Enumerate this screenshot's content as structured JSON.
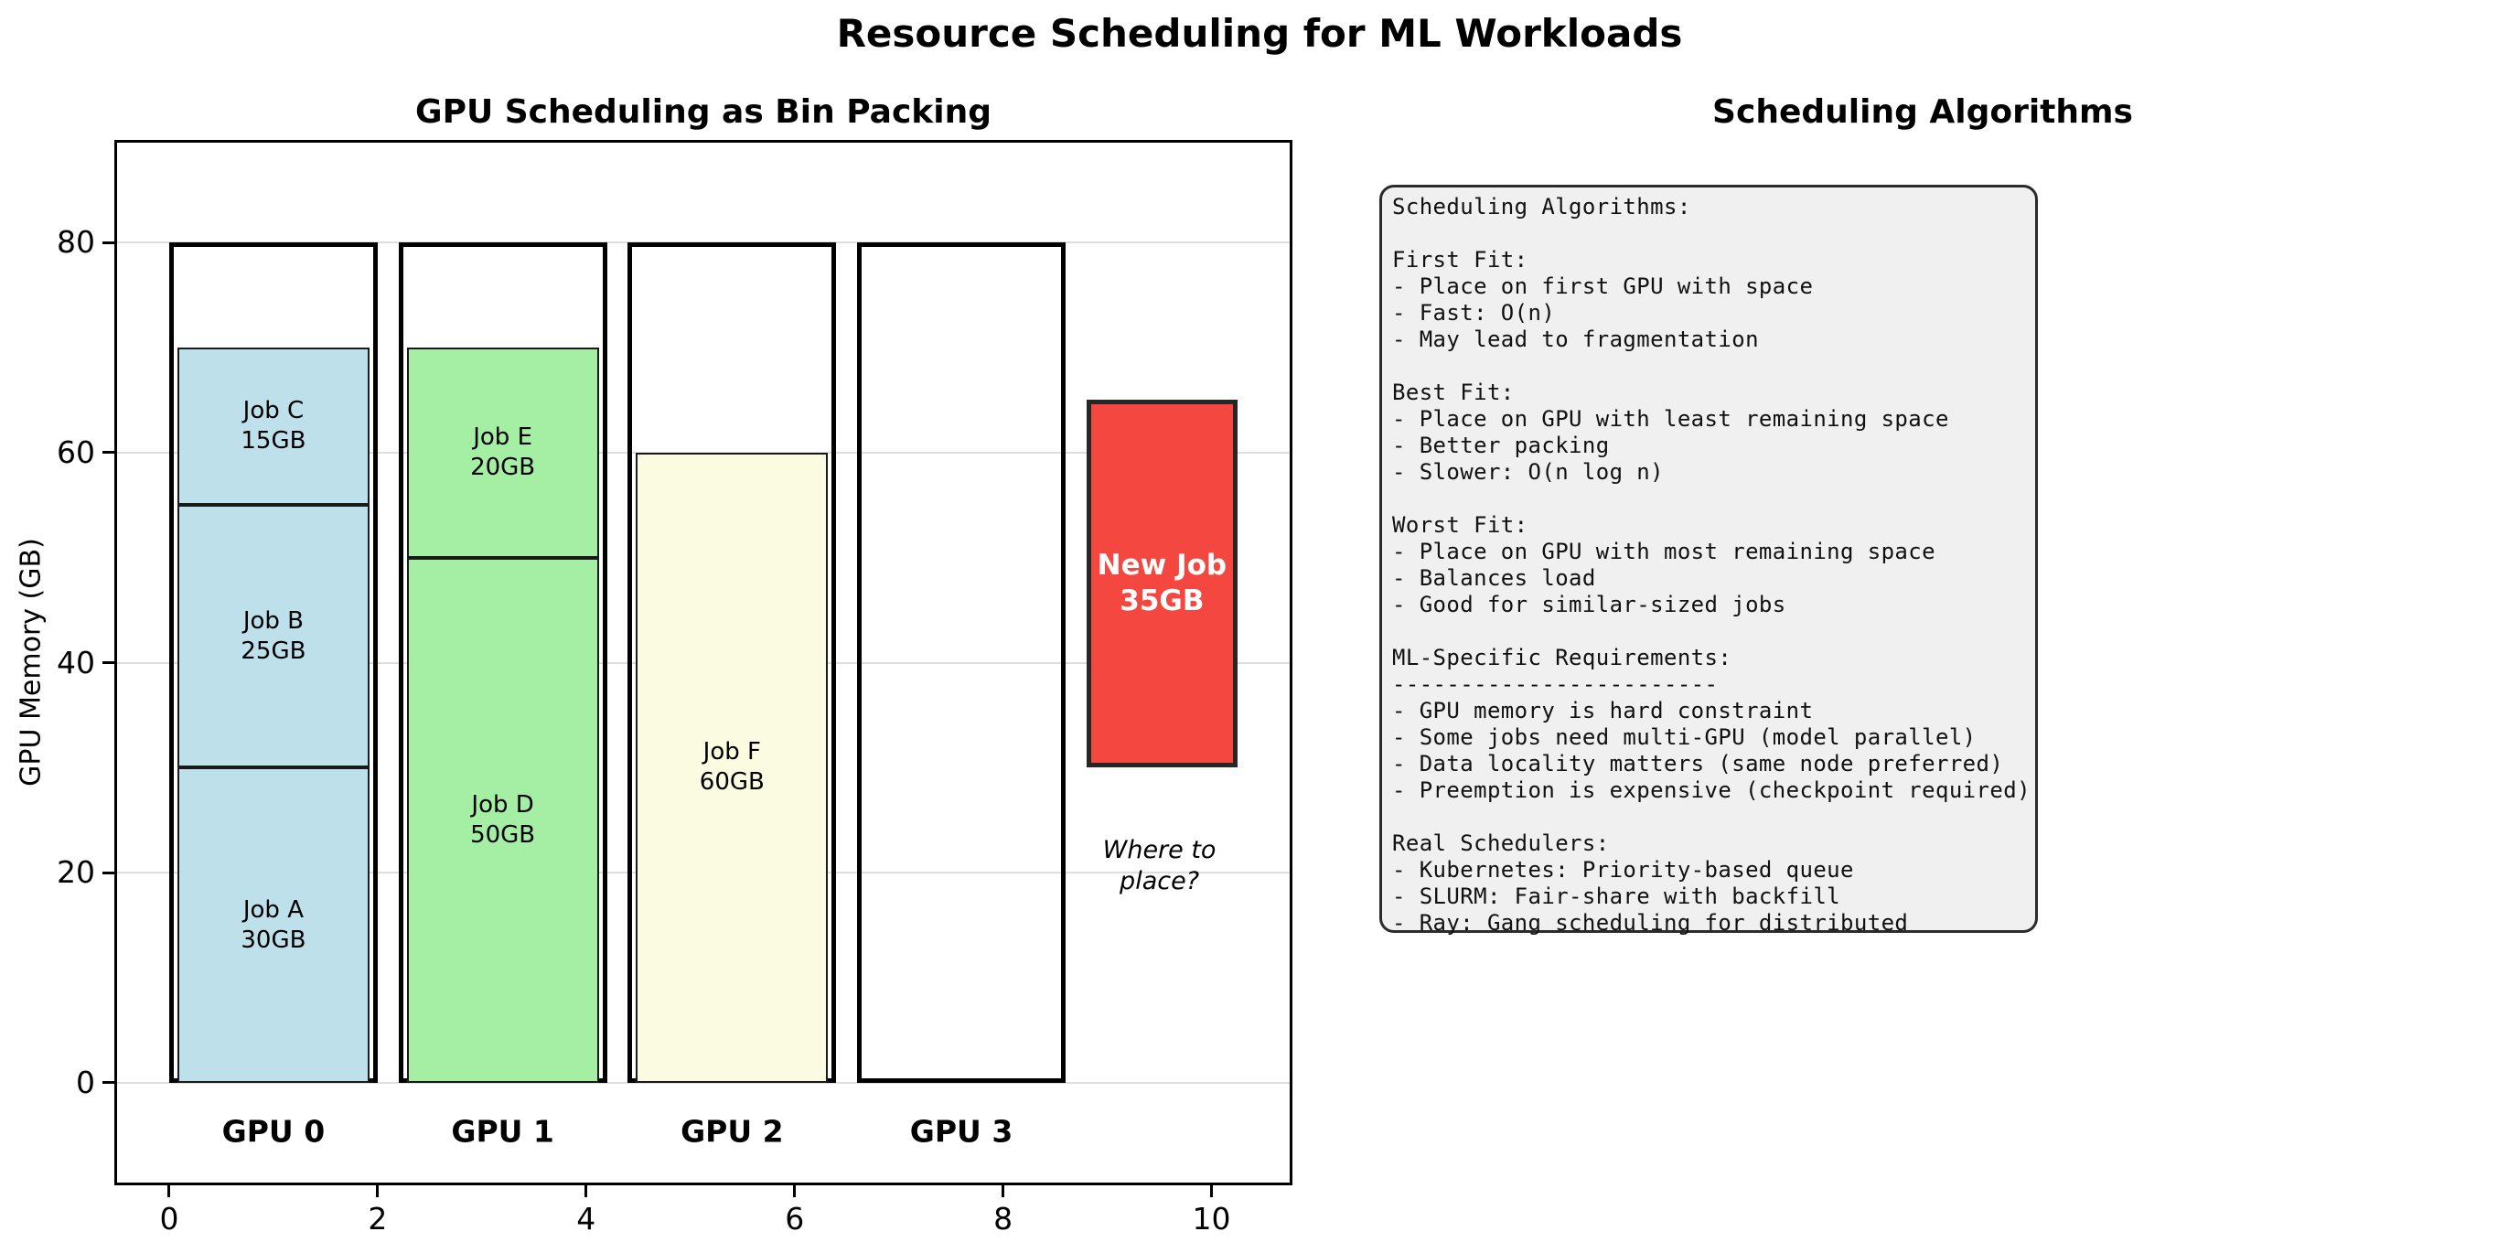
{
  "figure_title": "Resource Scheduling for ML Workloads",
  "left_panel": {
    "title": "GPU Scheduling as Bin Packing"
  },
  "right_panel": {
    "title": "Scheduling Algorithms",
    "info_lines": [
      "Scheduling Algorithms:",
      "",
      "First Fit:",
      "- Place on first GPU with space",
      "- Fast: O(n)",
      "- May lead to fragmentation",
      "",
      "Best Fit:",
      "- Place on GPU with least remaining space",
      "- Better packing",
      "- Slower: O(n log n)",
      "",
      "Worst Fit:",
      "- Place on GPU with most remaining space",
      "- Balances load",
      "- Good for similar-sized jobs",
      "",
      "ML-Specific Requirements:",
      "------------------------",
      "- GPU memory is hard constraint",
      "- Some jobs need multi-GPU (model parallel)",
      "- Data locality matters (same node preferred)",
      "- Preemption is expensive (checkpoint required)",
      "",
      "Real Schedulers:",
      "- Kubernetes: Priority-based queue",
      "- SLURM: Fair-share with backfill",
      "- Ray: Gang scheduling for distributed"
    ]
  },
  "chart_data": {
    "type": "bar",
    "title": "GPU Scheduling as Bin Packing",
    "xlabel": "",
    "ylabel": "GPU Memory (GB)",
    "x_ticks": [
      0,
      2,
      4,
      6,
      8,
      10
    ],
    "y_ticks": [
      0,
      20,
      40,
      60,
      80
    ],
    "xlim": [
      -0.5,
      10.75
    ],
    "ylim": [
      -9.5,
      89.5
    ],
    "grid": "y",
    "grid_color": "#dedede",
    "gpu_capacity_gb": 80,
    "bin_width": 2,
    "bins": [
      {
        "label": "GPU 0",
        "x0": 0.0,
        "fill": "#BDE0EB",
        "jobs": [
          {
            "name": "Job A",
            "gb": 30
          },
          {
            "name": "Job B",
            "gb": 25
          },
          {
            "name": "Job C",
            "gb": 15
          }
        ]
      },
      {
        "label": "GPU 1",
        "x0": 2.2,
        "fill": "#A5EFA5",
        "jobs": [
          {
            "name": "Job D",
            "gb": 50
          },
          {
            "name": "Job E",
            "gb": 20
          }
        ]
      },
      {
        "label": "GPU 2",
        "x0": 4.4,
        "fill": "#FBFBE1",
        "jobs": [
          {
            "name": "Job F",
            "gb": 60
          }
        ]
      },
      {
        "label": "GPU 3",
        "x0": 6.6,
        "fill": "#FFFFFF",
        "jobs": []
      }
    ],
    "gpu_label_y": -4.6,
    "pending_job": {
      "name": "New Job",
      "gb": 35,
      "x0": 8.8,
      "x1": 10.25,
      "y0": 30,
      "y1": 65,
      "color": "#F4473F",
      "text_color": "#FFFFFF",
      "label_suffix": "GB"
    },
    "annotation": {
      "lines": [
        "Where to",
        "place?"
      ],
      "x": 9.5,
      "y": 20.6
    }
  }
}
